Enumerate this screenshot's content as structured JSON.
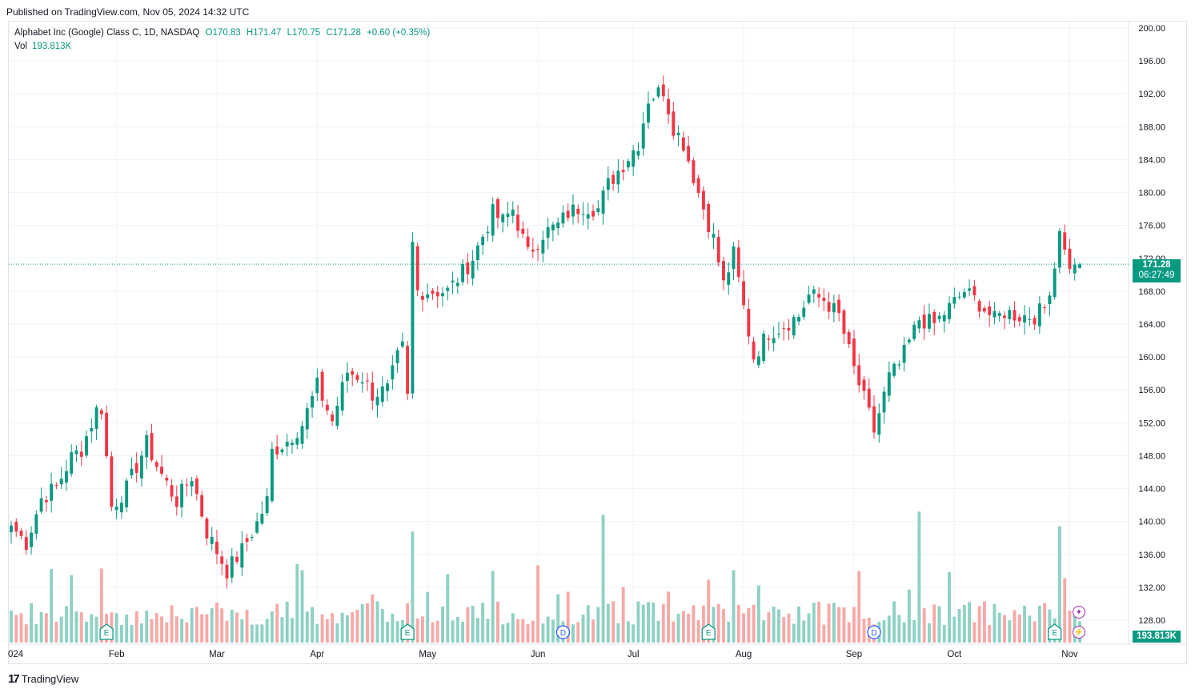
{
  "header": {
    "published": "Published on TradingView.com, Nov 05, 2024 14:32 UTC"
  },
  "legend": {
    "symbol": "Alphabet Inc (Google) Class C, 1D, NASDAQ",
    "open": "O170.83",
    "high": "H171.47",
    "low": "L170.75",
    "close": "C171.28",
    "change": "+0.60 (+0.35%)",
    "vol_label": "Vol",
    "vol_value": "193.813K"
  },
  "price_axis": {
    "ticks": [
      "200.00",
      "196.00",
      "192.00",
      "188.00",
      "184.00",
      "180.00",
      "176.00",
      "172.00",
      "168.00",
      "164.00",
      "160.00",
      "156.00",
      "152.00",
      "148.00",
      "144.00",
      "140.00",
      "136.00",
      "132.00",
      "128.00"
    ],
    "last_price": "171.28",
    "countdown": "06:27:49",
    "volume_label": "193.813K"
  },
  "time_axis": {
    "labels": [
      "024",
      "Feb",
      "Mar",
      "Apr",
      "May",
      "Jun",
      "Jul",
      "Aug",
      "Sep",
      "Oct",
      "Nov"
    ]
  },
  "markers": {
    "earnings": "E",
    "dividend": "D",
    "events": [
      "E",
      "E",
      "D",
      "E",
      "D",
      "E"
    ]
  },
  "footer": {
    "brand": "TradingView"
  },
  "colors": {
    "up": "#089981",
    "down": "#f23645",
    "vol_up": "#8fd1c5",
    "vol_down": "#f7a9a7"
  },
  "chart_data": {
    "type": "candlestick",
    "title": "Alphabet Inc (Google) Class C, 1D, NASDAQ",
    "ylim": [
      126,
      202
    ],
    "xlabel": "",
    "ylabel": "",
    "grid": true,
    "series": [
      {
        "name": "Alphabet Inc (Google) Class C",
        "anchors": [
          [
            "Jan 02",
            139.5
          ],
          [
            "Jan 05",
            137.4
          ],
          [
            "Jan 10",
            142.8
          ],
          [
            "Jan 16",
            144.2
          ],
          [
            "Jan 19",
            147.8
          ],
          [
            "Jan 23",
            148.8
          ],
          [
            "Jan 26",
            153.5
          ],
          [
            "Jan 29",
            153.8
          ],
          [
            "Jan 31",
            141.8
          ],
          [
            "Feb 05",
            144.0
          ],
          [
            "Feb 09",
            149.5
          ],
          [
            "Feb 13",
            146.8
          ],
          [
            "Feb 16",
            143.5
          ],
          [
            "Feb 20",
            142.5
          ],
          [
            "Feb 23",
            145.5
          ],
          [
            "Feb 28",
            138.7
          ],
          [
            "Mar 05",
            134.0
          ],
          [
            "Mar 08",
            136.5
          ],
          [
            "Mar 13",
            139.8
          ],
          [
            "Mar 15",
            142.5
          ],
          [
            "Mar 18",
            148.5
          ],
          [
            "Mar 21",
            149.8
          ],
          [
            "Mar 26",
            151.8
          ],
          [
            "Apr 01",
            156.5
          ],
          [
            "Apr 04",
            152.2
          ],
          [
            "Apr 09",
            158.2
          ],
          [
            "Apr 12",
            157.5
          ],
          [
            "Apr 16",
            155.5
          ],
          [
            "Apr 19",
            156.0
          ],
          [
            "Apr 23",
            159.9
          ],
          [
            "Apr 24",
            161.1
          ],
          [
            "Apr 25",
            155.0
          ],
          [
            "Apr 26",
            173.7
          ],
          [
            "Apr 29",
            168.0
          ],
          [
            "May 02",
            168.0
          ],
          [
            "May 07",
            168.0
          ],
          [
            "May 10",
            170.3
          ],
          [
            "May 14",
            172.0
          ],
          [
            "May 20",
            177.5
          ],
          [
            "May 22",
            176.5
          ],
          [
            "May 24",
            178.0
          ],
          [
            "May 30",
            172.5
          ],
          [
            "Jun 04",
            175.0
          ],
          [
            "Jun 07",
            176.0
          ],
          [
            "Jun 11",
            177.5
          ],
          [
            "Jun 14",
            178.4
          ],
          [
            "Jun 20",
            178.0
          ],
          [
            "Jun 24",
            181.0
          ],
          [
            "Jun 28",
            184.3
          ],
          [
            "Jul 02",
            186.0
          ],
          [
            "Jul 05",
            191.4
          ],
          [
            "Jul 10",
            192.5
          ],
          [
            "Jul 12",
            188.0
          ],
          [
            "Jul 16",
            186.0
          ],
          [
            "Jul 19",
            180.0
          ],
          [
            "Jul 24",
            174.4
          ],
          [
            "Jul 26",
            168.8
          ],
          [
            "Jul 30",
            172.5
          ],
          [
            "Aug 01",
            166.0
          ],
          [
            "Aug 05",
            160.0
          ],
          [
            "Aug 08",
            163.0
          ],
          [
            "Aug 12",
            163.5
          ],
          [
            "Aug 16",
            165.0
          ],
          [
            "Aug 20",
            167.5
          ],
          [
            "Aug 23",
            167.0
          ],
          [
            "Aug 28",
            165.0
          ],
          [
            "Sep 03",
            158.5
          ],
          [
            "Sep 06",
            153.0
          ],
          [
            "Sep 09",
            151.0
          ],
          [
            "Sep 12",
            157.5
          ],
          [
            "Sep 16",
            159.0
          ],
          [
            "Sep 20",
            164.6
          ],
          [
            "Sep 25",
            164.0
          ],
          [
            "Sep 30",
            166.0
          ],
          [
            "Oct 03",
            168.0
          ],
          [
            "Oct 08",
            166.5
          ],
          [
            "Oct 11",
            164.5
          ],
          [
            "Oct 15",
            165.5
          ],
          [
            "Oct 18",
            165.0
          ],
          [
            "Oct 23",
            165.0
          ],
          [
            "Oct 25",
            166.0
          ],
          [
            "Oct 29",
            171.0
          ],
          [
            "Oct 30",
            176.0
          ],
          [
            "Oct 31",
            172.7
          ],
          [
            "Nov 01",
            171.3
          ],
          [
            "Nov 04",
            170.7
          ],
          [
            "Nov 05",
            171.28
          ]
        ]
      }
    ],
    "volume": {
      "last": "193.813K"
    }
  }
}
